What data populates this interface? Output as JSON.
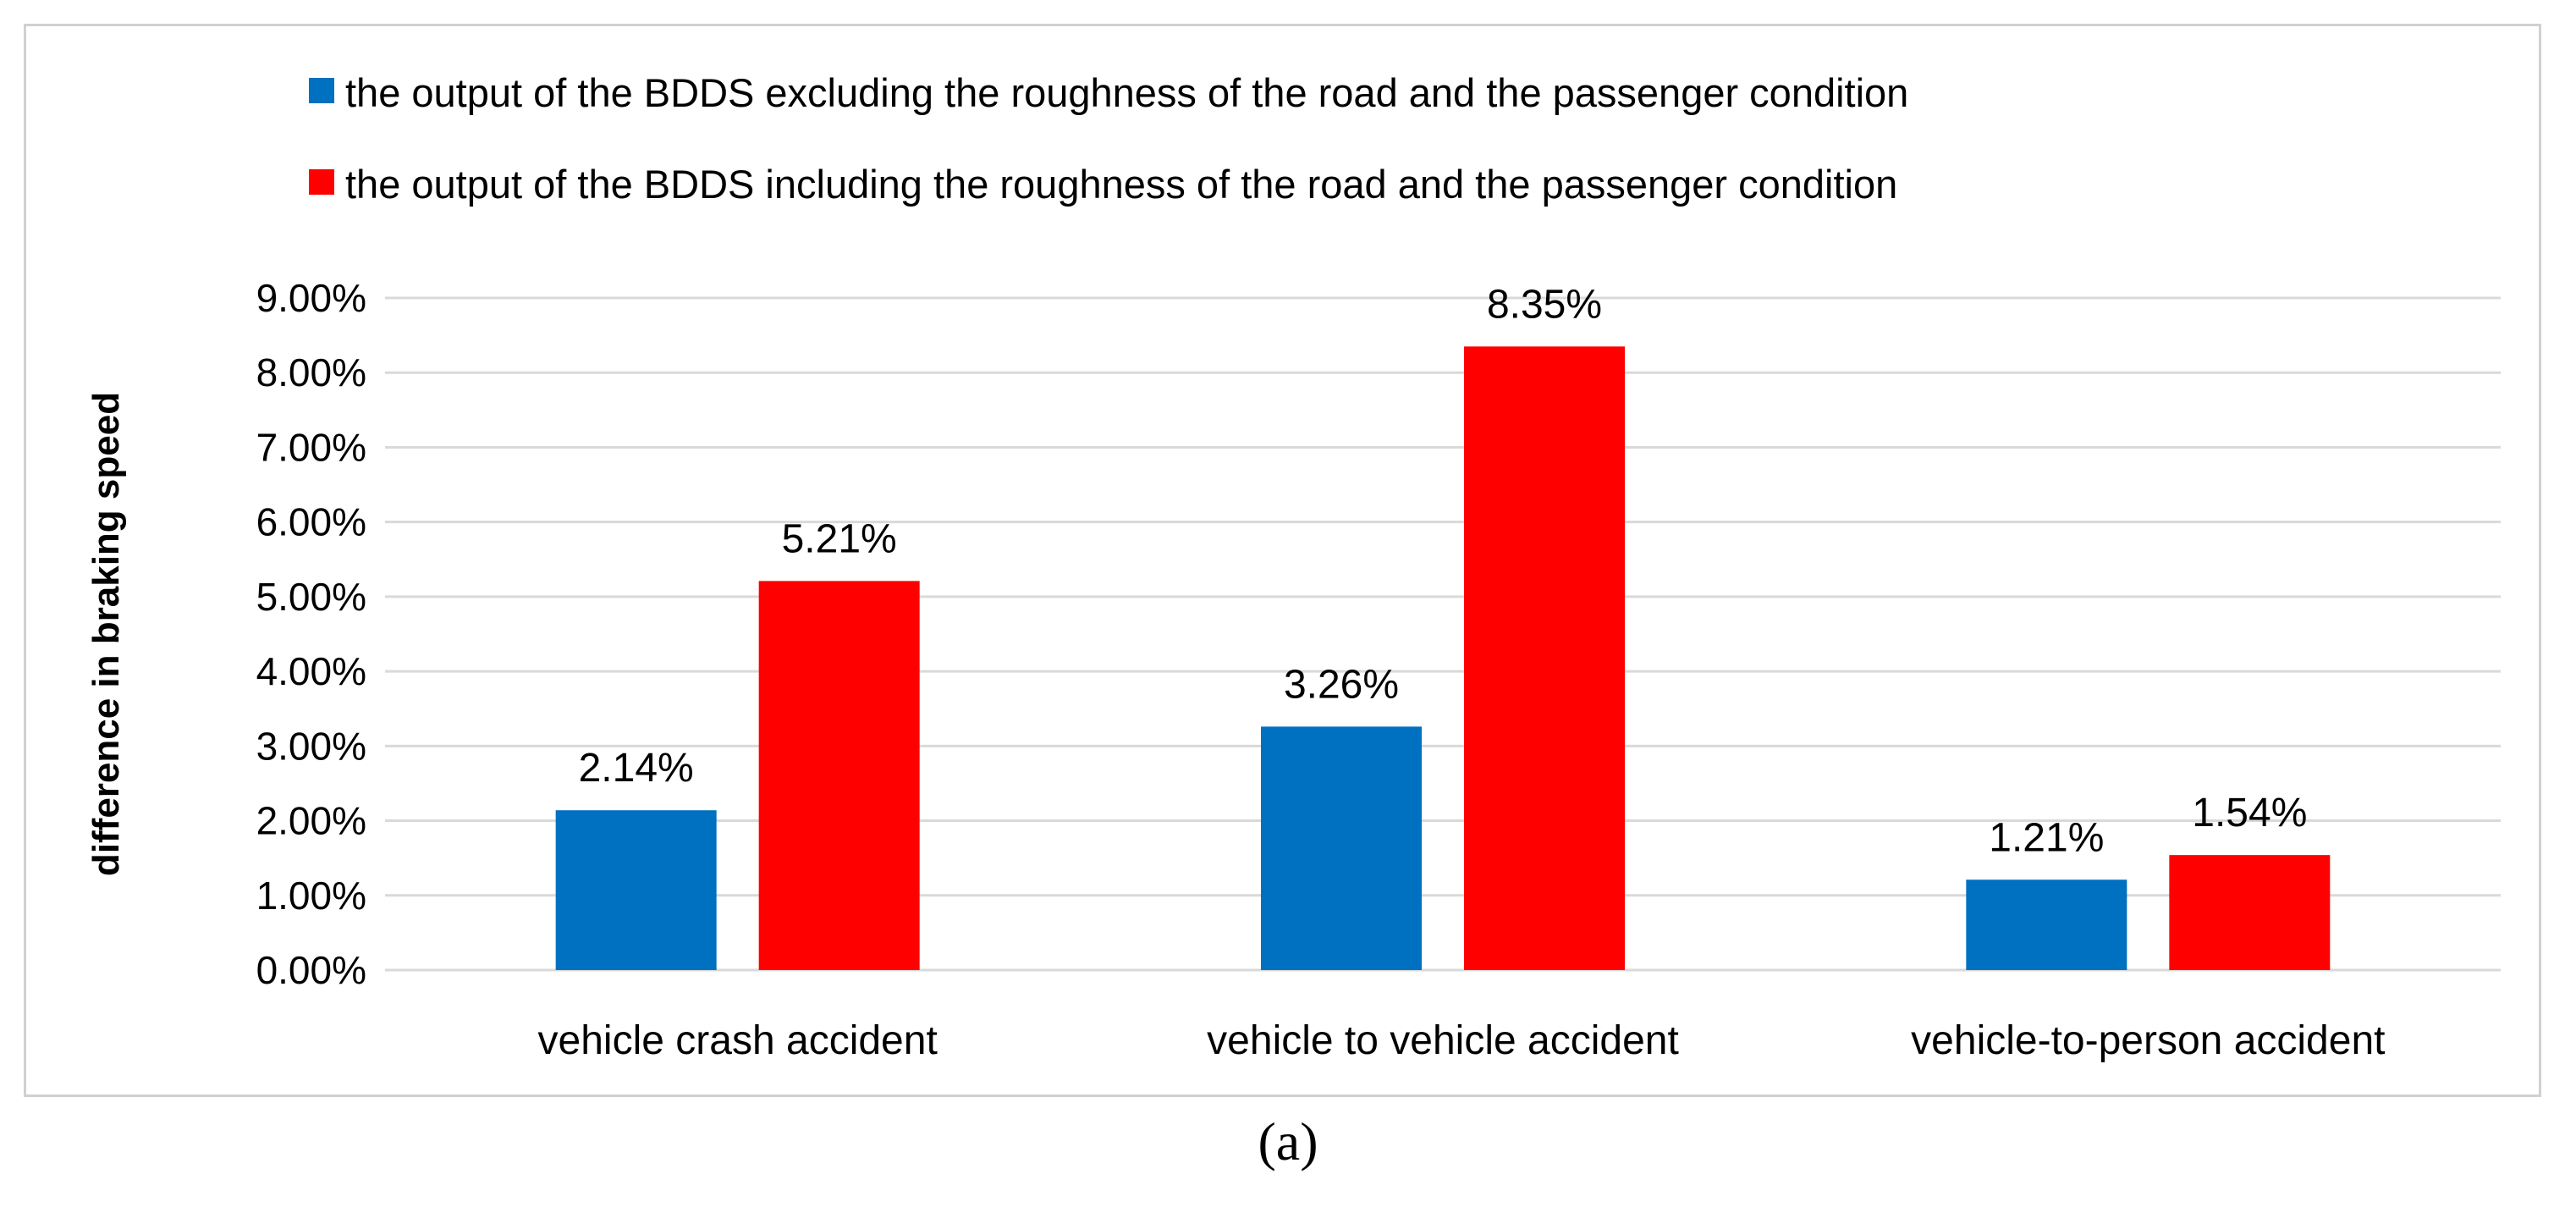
{
  "caption": "(a)",
  "chart_data": {
    "type": "bar",
    "categories": [
      "vehicle crash accident",
      "vehicle to vehicle accident",
      "vehicle-to-person accident"
    ],
    "series": [
      {
        "name": "the output of the BDDS excluding the roughness of the road and the passenger condition",
        "values": [
          2.14,
          3.26,
          1.21
        ],
        "color": "#0070C0"
      },
      {
        "name": "the output of the BDDS including the roughness of the road and the passenger condition",
        "values": [
          5.21,
          8.35,
          1.54
        ],
        "color": "#FF0000"
      }
    ],
    "data_labels": [
      [
        "2.14%",
        "3.26%",
        "1.21%"
      ],
      [
        "5.21%",
        "8.35%",
        "1.54%"
      ]
    ],
    "ylabel": "difference in braking speed",
    "ylim": [
      0,
      9
    ],
    "ytick_labels": [
      "0.00%",
      "1.00%",
      "2.00%",
      "3.00%",
      "4.00%",
      "5.00%",
      "6.00%",
      "7.00%",
      "8.00%",
      "9.00%"
    ],
    "grid": true,
    "legend_position": "top"
  }
}
